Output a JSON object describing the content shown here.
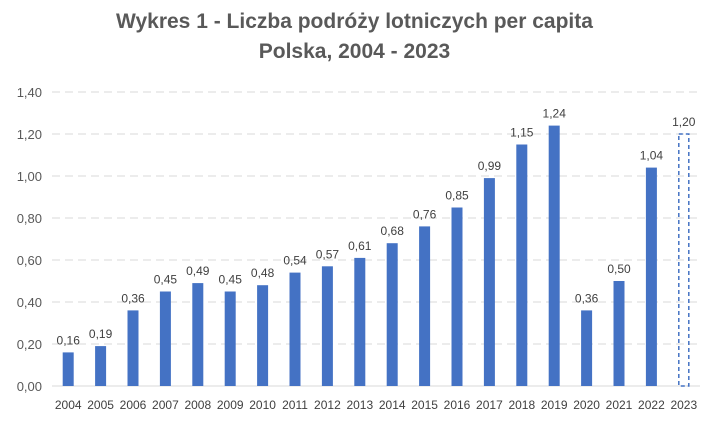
{
  "chart_data": {
    "type": "bar",
    "title": "Wykres 1 - Liczba podróży lotniczych per capita",
    "subtitle": "Polska, 2004 - 2023",
    "xlabel": "",
    "ylabel": "",
    "ylim": [
      0,
      1.4
    ],
    "ytick_step": 0.2,
    "ytick_labels": [
      "0,00",
      "0,20",
      "0,40",
      "0,60",
      "0,80",
      "1,00",
      "1,20",
      "1,40"
    ],
    "grid": true,
    "categories": [
      "2004",
      "2005",
      "2006",
      "2007",
      "2008",
      "2009",
      "2010",
      "2011",
      "2012",
      "2013",
      "2014",
      "2015",
      "2016",
      "2017",
      "2018",
      "2019",
      "2020",
      "2021",
      "2022",
      "2023"
    ],
    "values": [
      0.16,
      0.19,
      0.36,
      0.45,
      0.49,
      0.45,
      0.48,
      0.54,
      0.57,
      0.61,
      0.68,
      0.76,
      0.85,
      0.99,
      1.15,
      1.24,
      0.36,
      0.5,
      1.04,
      1.2
    ],
    "value_labels": [
      "0,16",
      "0,19",
      "0,36",
      "0,45",
      "0,49",
      "0,45",
      "0,48",
      "0,54",
      "0,57",
      "0,61",
      "0,68",
      "0,76",
      "0,85",
      "0,99",
      "1,15",
      "1,24",
      "0,36",
      "0,50",
      "1,04",
      "1,20"
    ],
    "estimated": [
      false,
      false,
      false,
      false,
      false,
      false,
      false,
      false,
      false,
      false,
      false,
      false,
      false,
      false,
      false,
      false,
      false,
      false,
      false,
      true
    ],
    "colors": {
      "bar": "#4472C4",
      "grid": "#D9D9D9",
      "axis": "#D9D9D9",
      "text": "#595959"
    }
  }
}
